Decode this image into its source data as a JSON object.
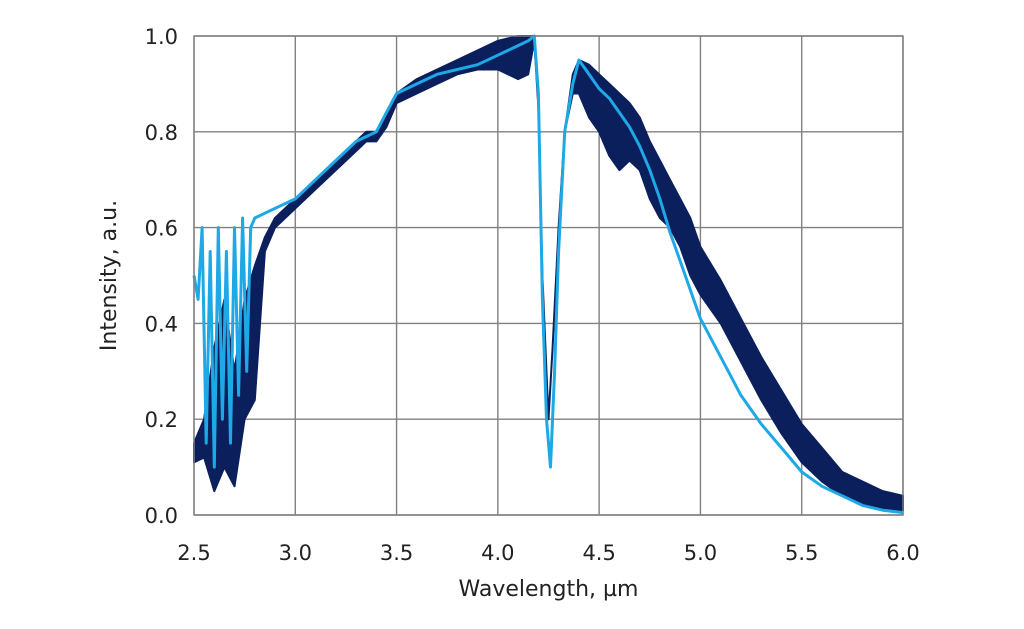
{
  "chart_data": {
    "type": "line",
    "title": "",
    "xlabel": "Wavelength, µm",
    "ylabel": "Intensity, a.u.",
    "xlim": [
      2.5,
      6.0
    ],
    "ylim": [
      0.0,
      1.0
    ],
    "x_ticks": [
      "2.5",
      "3.0",
      "3.5",
      "4.0",
      "4.5",
      "5.0",
      "5.5",
      "6.0"
    ],
    "y_ticks": [
      "0.0",
      "0.2",
      "0.4",
      "0.6",
      "0.8",
      "1.0"
    ],
    "grid": true,
    "legend": "none",
    "series": [
      {
        "color": "#0a1f5c",
        "band": true,
        "x": [
          2.5,
          2.55,
          2.6,
          2.65,
          2.7,
          2.75,
          2.8,
          2.85,
          2.9,
          3.0,
          3.1,
          3.2,
          3.3,
          3.35,
          3.4,
          3.45,
          3.5,
          3.6,
          3.7,
          3.8,
          3.9,
          4.0,
          4.1,
          4.15,
          4.18,
          4.2,
          4.22,
          4.25,
          4.27,
          4.3,
          4.33,
          4.37,
          4.4,
          4.45,
          4.5,
          4.55,
          4.6,
          4.65,
          4.7,
          4.75,
          4.8,
          4.85,
          4.9,
          4.95,
          5.0,
          5.1,
          5.2,
          5.3,
          5.4,
          5.5,
          5.6,
          5.7,
          5.8,
          5.9,
          6.0
        ],
        "upper": [
          0.15,
          0.2,
          0.35,
          0.45,
          0.3,
          0.45,
          0.52,
          0.58,
          0.62,
          0.66,
          0.7,
          0.74,
          0.78,
          0.8,
          0.8,
          0.84,
          0.88,
          0.91,
          0.93,
          0.95,
          0.97,
          0.99,
          1.0,
          1.0,
          1.0,
          0.85,
          0.5,
          0.2,
          0.35,
          0.6,
          0.8,
          0.92,
          0.95,
          0.94,
          0.92,
          0.9,
          0.88,
          0.86,
          0.83,
          0.78,
          0.74,
          0.7,
          0.66,
          0.62,
          0.56,
          0.49,
          0.41,
          0.33,
          0.26,
          0.19,
          0.14,
          0.09,
          0.07,
          0.05,
          0.04
        ],
        "lower": [
          0.11,
          0.12,
          0.05,
          0.1,
          0.06,
          0.2,
          0.24,
          0.55,
          0.6,
          0.64,
          0.68,
          0.72,
          0.76,
          0.78,
          0.78,
          0.81,
          0.86,
          0.88,
          0.9,
          0.92,
          0.93,
          0.93,
          0.91,
          0.92,
          0.99,
          0.85,
          0.5,
          0.2,
          0.35,
          0.6,
          0.8,
          0.88,
          0.88,
          0.83,
          0.8,
          0.75,
          0.72,
          0.74,
          0.72,
          0.66,
          0.62,
          0.6,
          0.56,
          0.5,
          0.46,
          0.4,
          0.32,
          0.24,
          0.17,
          0.11,
          0.07,
          0.04,
          0.02,
          0.01,
          0.01
        ]
      },
      {
        "color": "#1fa8e6",
        "band": false,
        "x": [
          2.5,
          2.52,
          2.54,
          2.56,
          2.58,
          2.6,
          2.62,
          2.64,
          2.66,
          2.68,
          2.7,
          2.72,
          2.74,
          2.76,
          2.78,
          2.8,
          2.85,
          2.9,
          3.0,
          3.1,
          3.2,
          3.3,
          3.35,
          3.4,
          3.45,
          3.5,
          3.6,
          3.7,
          3.8,
          3.9,
          4.0,
          4.1,
          4.15,
          4.18,
          4.2,
          4.22,
          4.24,
          4.26,
          4.28,
          4.3,
          4.33,
          4.37,
          4.4,
          4.45,
          4.5,
          4.55,
          4.6,
          4.65,
          4.7,
          4.75,
          4.8,
          4.85,
          4.9,
          4.95,
          5.0,
          5.1,
          5.2,
          5.3,
          5.4,
          5.5,
          5.6,
          5.7,
          5.8,
          5.9,
          6.0
        ],
        "y": [
          0.5,
          0.45,
          0.6,
          0.15,
          0.55,
          0.1,
          0.6,
          0.2,
          0.55,
          0.15,
          0.6,
          0.25,
          0.62,
          0.3,
          0.6,
          0.62,
          0.63,
          0.64,
          0.66,
          0.7,
          0.74,
          0.78,
          0.79,
          0.8,
          0.84,
          0.88,
          0.9,
          0.92,
          0.93,
          0.94,
          0.96,
          0.98,
          0.99,
          1.0,
          0.88,
          0.45,
          0.2,
          0.1,
          0.3,
          0.55,
          0.8,
          0.9,
          0.95,
          0.92,
          0.89,
          0.87,
          0.84,
          0.81,
          0.77,
          0.72,
          0.66,
          0.59,
          0.53,
          0.47,
          0.41,
          0.33,
          0.25,
          0.19,
          0.14,
          0.09,
          0.06,
          0.04,
          0.02,
          0.01,
          0.005
        ]
      }
    ]
  }
}
